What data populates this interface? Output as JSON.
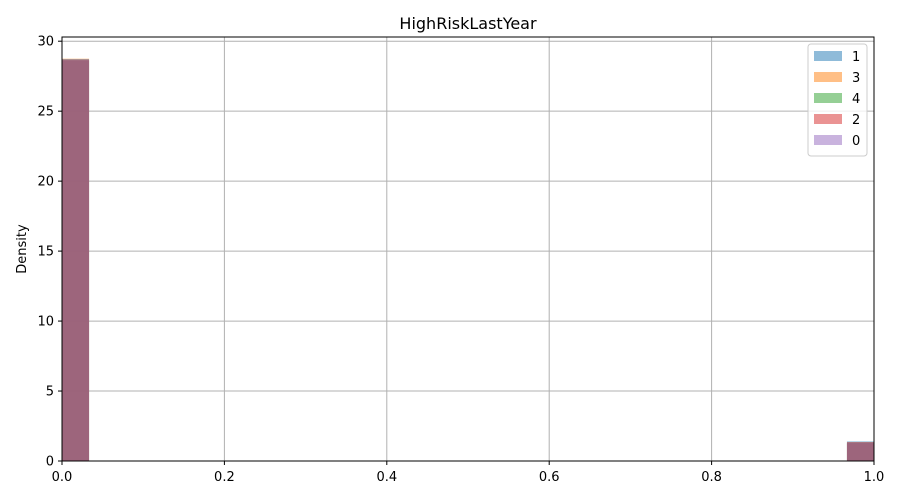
{
  "chart_data": {
    "type": "bar",
    "title": "HighRiskLastYear",
    "xlabel": "",
    "ylabel": "Density",
    "xlim": [
      0,
      1
    ],
    "ylim": [
      0,
      30.3
    ],
    "xticks": [
      "0.0",
      "0.2",
      "0.4",
      "0.6",
      "0.8",
      "1.0"
    ],
    "yticks": [
      "0",
      "5",
      "10",
      "15",
      "20",
      "25",
      "30"
    ],
    "grid": true,
    "legend_position": "top-right",
    "bin_width": 0.0333,
    "bins": [
      {
        "x0": 0.0,
        "x1": 0.0333
      },
      {
        "x0": 0.9667,
        "x1": 1.0
      }
    ],
    "series": [
      {
        "name": "1",
        "color": "#1f77b4",
        "values": [
          28.6,
          1.4
        ]
      },
      {
        "name": "3",
        "color": "#ff7f0e",
        "values": [
          28.75,
          1.25
        ]
      },
      {
        "name": "4",
        "color": "#2ca02c",
        "values": [
          28.7,
          1.3
        ]
      },
      {
        "name": "2",
        "color": "#d62728",
        "values": [
          28.65,
          1.35
        ]
      },
      {
        "name": "0",
        "color": "#9467bd",
        "values": [
          28.72,
          1.28
        ]
      }
    ]
  }
}
